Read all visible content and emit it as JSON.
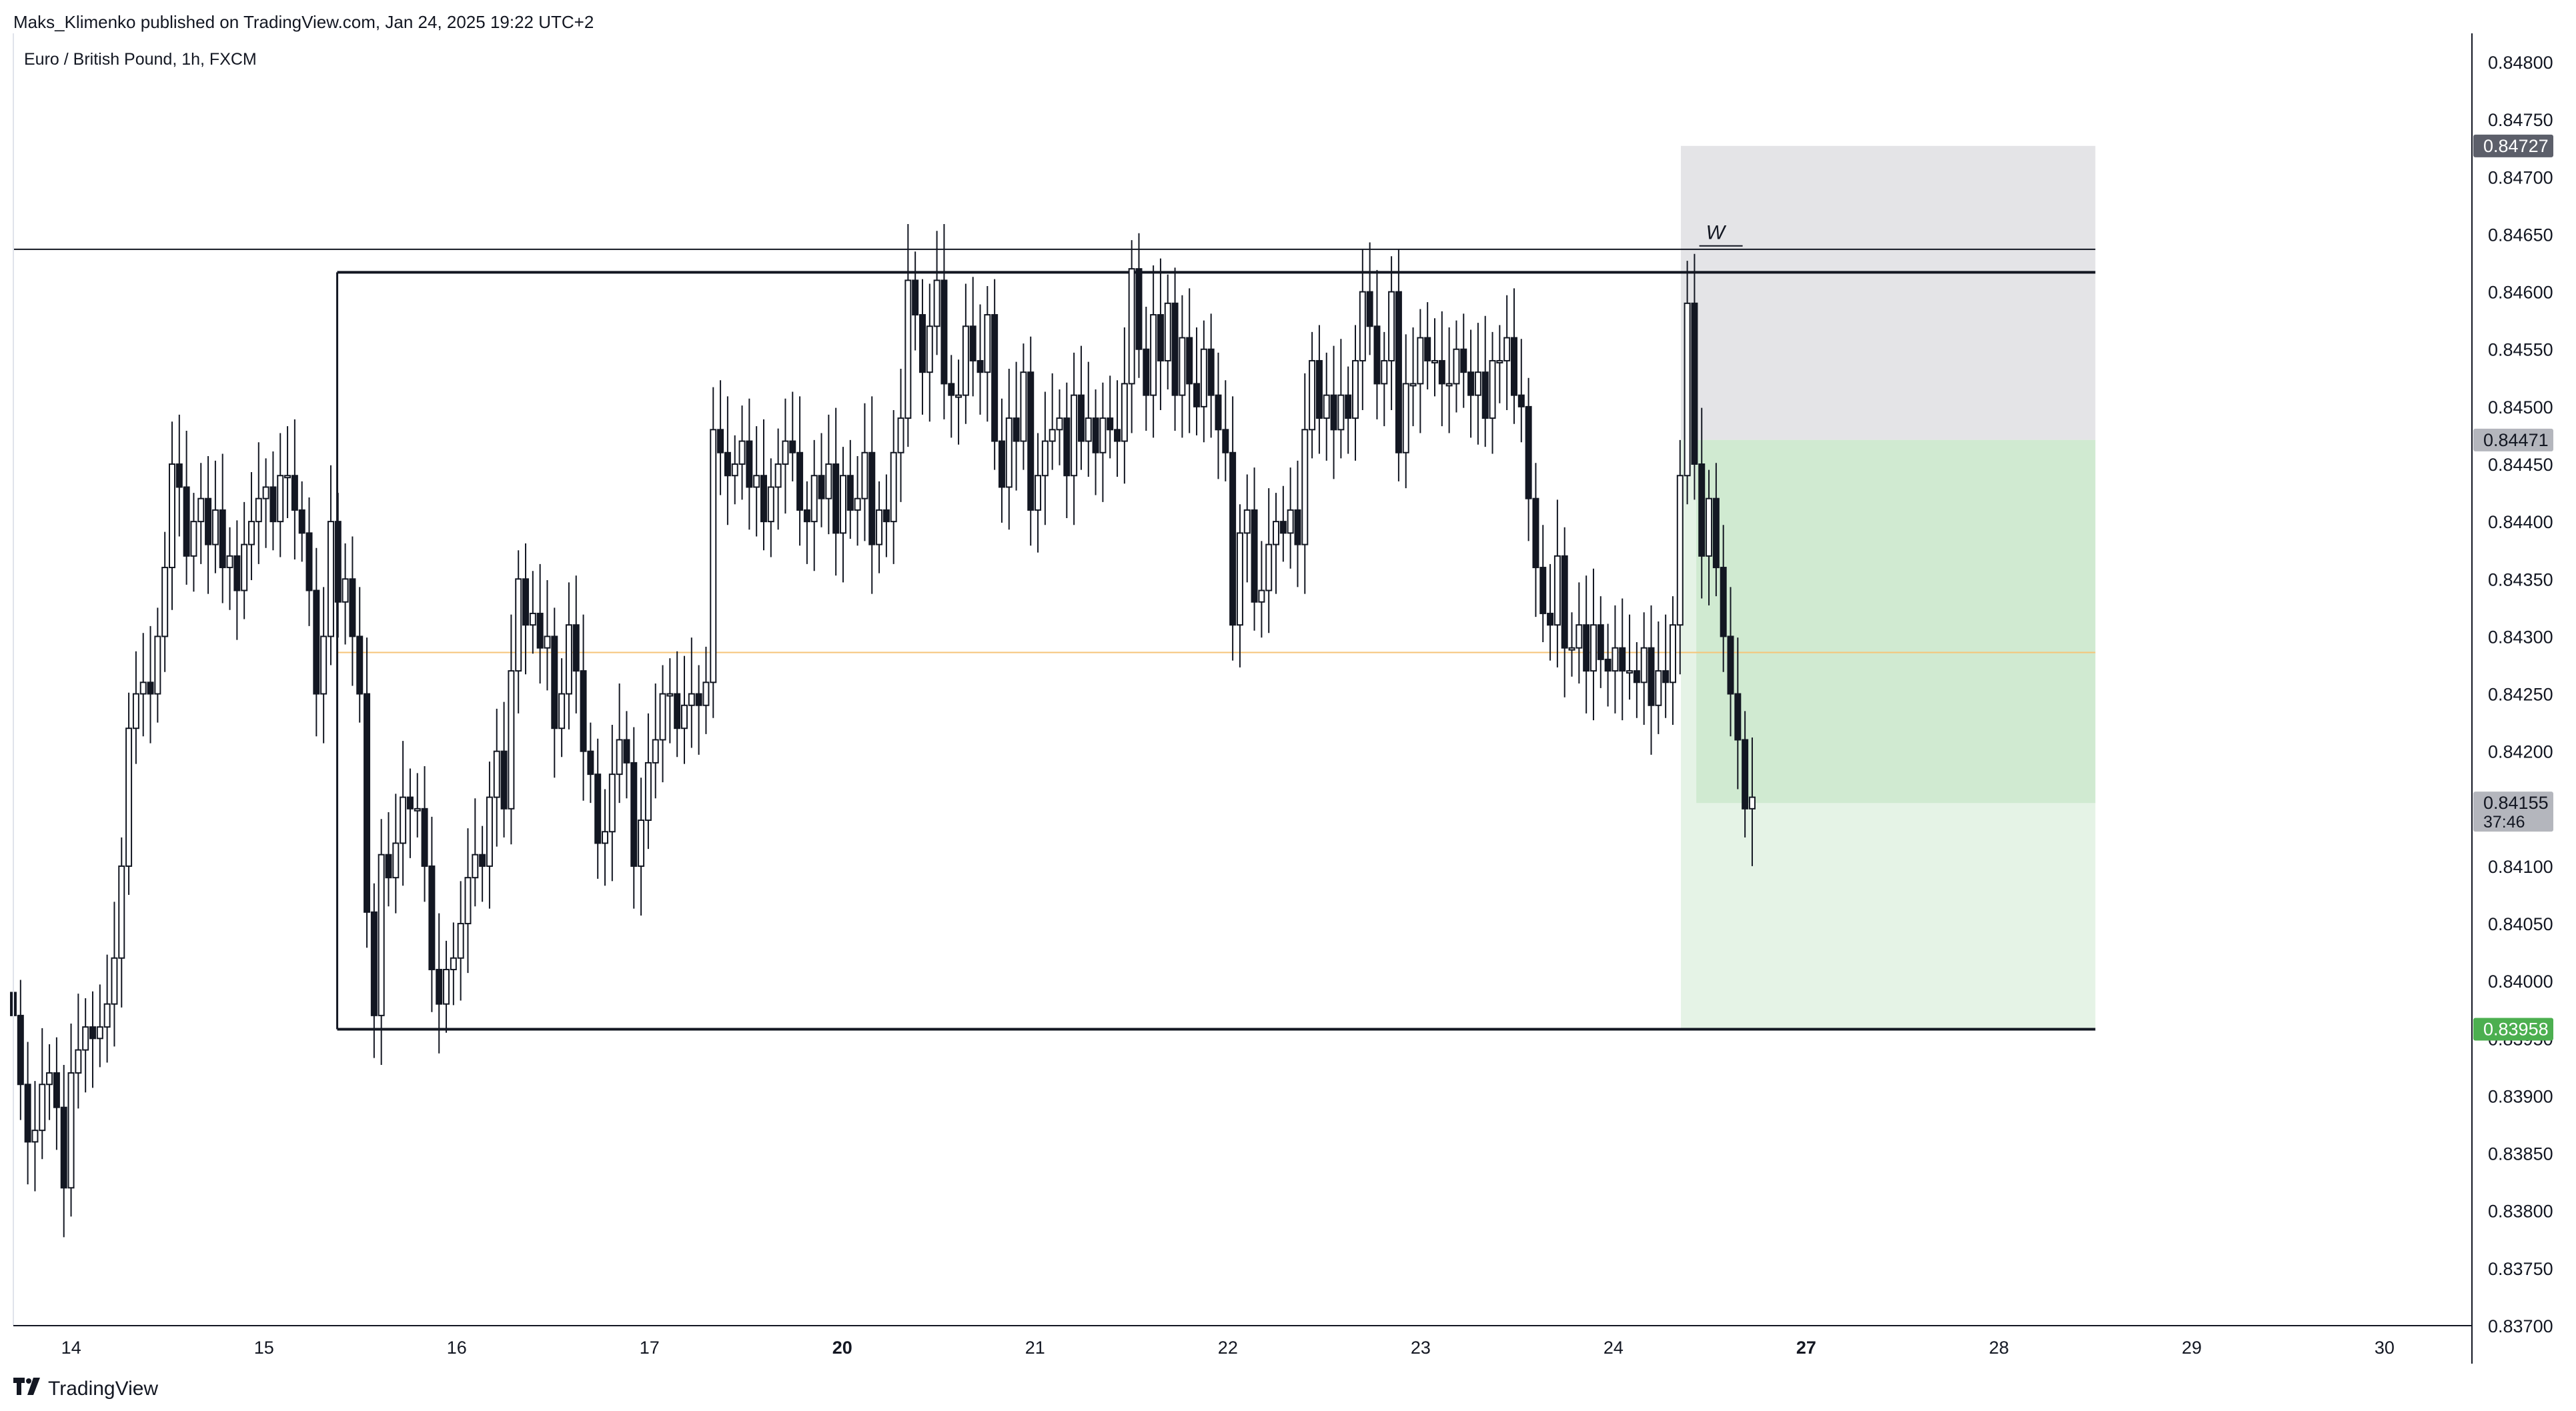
{
  "header": {
    "published": "Maks_Klimenko published on TradingView.com, Jan 24, 2025 19:22 UTC+2",
    "symbol": "Euro / British Pound, 1h, FXCM"
  },
  "footer": {
    "brand": "TradingView",
    "logo_icon": "tradingview-logo-icon"
  },
  "colors": {
    "candle_up_fill": "#ffffff",
    "candle_down_fill": "#131722",
    "candle_border": "#131722",
    "stop_zone": "#e4e4e7",
    "target_zone_dark": "#d0ead1",
    "target_zone_light": "#e5f3e6",
    "mid_line": "#f6c478",
    "price_badge_dark": "#5c5f6a",
    "price_badge_gray": "#b4b6bd",
    "price_badge_green": "#4caf50"
  },
  "chart_data": {
    "type": "candlestick",
    "symbol": "EUR/GBP",
    "timeframe": "1h",
    "ylim": [
      0.837,
      0.84825
    ],
    "y_ticks": [
      "0.84800",
      "0.84750",
      "0.84700",
      "0.84650",
      "0.84600",
      "0.84550",
      "0.84500",
      "0.84450",
      "0.84400",
      "0.84350",
      "0.84300",
      "0.84250",
      "0.84200",
      "0.84150",
      "0.84100",
      "0.84050",
      "0.84000",
      "0.83950",
      "0.83900",
      "0.83850",
      "0.83800",
      "0.83750",
      "0.83700"
    ],
    "x_ticks": [
      {
        "label": "14",
        "bold": false
      },
      {
        "label": "15",
        "bold": false
      },
      {
        "label": "16",
        "bold": false
      },
      {
        "label": "17",
        "bold": false
      },
      {
        "label": "20",
        "bold": true
      },
      {
        "label": "21",
        "bold": false
      },
      {
        "label": "22",
        "bold": false
      },
      {
        "label": "23",
        "bold": false
      },
      {
        "label": "24",
        "bold": false
      },
      {
        "label": "27",
        "bold": true
      },
      {
        "label": "28",
        "bold": false
      },
      {
        "label": "29",
        "bold": false
      },
      {
        "label": "30",
        "bold": false
      }
    ],
    "x_day_range": [
      -0.3,
      12.45
    ],
    "closes": [
      0.8397,
      0.8391,
      0.8386,
      0.8387,
      0.8391,
      0.8392,
      0.8389,
      0.8382,
      0.8392,
      0.8394,
      0.8396,
      0.8395,
      0.8396,
      0.8398,
      0.8402,
      0.841,
      0.8422,
      0.8425,
      0.8426,
      0.8425,
      0.843,
      0.8436,
      0.8445,
      0.8443,
      0.8437,
      0.844,
      0.8442,
      0.8438,
      0.8441,
      0.8436,
      0.8437,
      0.8434,
      0.8438,
      0.844,
      0.8442,
      0.8443,
      0.844,
      0.8444,
      0.8444,
      0.8441,
      0.8439,
      0.8434,
      0.8425,
      0.843,
      0.844,
      0.8433,
      0.8435,
      0.843,
      0.8425,
      0.8406,
      0.8397,
      0.8411,
      0.8409,
      0.8412,
      0.8416,
      0.8415,
      0.8415,
      0.841,
      0.8401,
      0.8398,
      0.8401,
      0.8402,
      0.8405,
      0.8409,
      0.8411,
      0.841,
      0.8416,
      0.842,
      0.8415,
      0.8427,
      0.8435,
      0.8431,
      0.8432,
      0.8429,
      0.843,
      0.8422,
      0.8425,
      0.8431,
      0.8427,
      0.842,
      0.8418,
      0.8412,
      0.8413,
      0.8418,
      0.8421,
      0.8419,
      0.841,
      0.8414,
      0.8419,
      0.8421,
      0.8425,
      0.8425,
      0.8422,
      0.8424,
      0.8425,
      0.8424,
      0.8426,
      0.8448,
      0.8446,
      0.8444,
      0.8445,
      0.8447,
      0.8443,
      0.8444,
      0.844,
      0.8443,
      0.8445,
      0.8447,
      0.8446,
      0.8441,
      0.844,
      0.8444,
      0.8442,
      0.8445,
      0.8439,
      0.8444,
      0.8441,
      0.8442,
      0.8446,
      0.8438,
      0.8441,
      0.844,
      0.8446,
      0.8449,
      0.8461,
      0.8458,
      0.8453,
      0.8457,
      0.8461,
      0.8452,
      0.8451,
      0.8451,
      0.8457,
      0.8454,
      0.8453,
      0.8458,
      0.8447,
      0.8443,
      0.8449,
      0.8447,
      0.8453,
      0.8441,
      0.8444,
      0.8447,
      0.8448,
      0.8449,
      0.8444,
      0.8451,
      0.8447,
      0.8449,
      0.8446,
      0.8449,
      0.8448,
      0.8447,
      0.8452,
      0.8462,
      0.8455,
      0.8451,
      0.8458,
      0.8454,
      0.8459,
      0.8451,
      0.8456,
      0.8452,
      0.845,
      0.8455,
      0.8451,
      0.8448,
      0.8446,
      0.8431,
      0.8439,
      0.8441,
      0.8433,
      0.8434,
      0.8438,
      0.844,
      0.8439,
      0.8441,
      0.8438,
      0.8448,
      0.8454,
      0.8449,
      0.8451,
      0.8448,
      0.8451,
      0.8449,
      0.8454,
      0.846,
      0.8457,
      0.8452,
      0.8454,
      0.846,
      0.8446,
      0.8452,
      0.8452,
      0.8456,
      0.8454,
      0.8454,
      0.8452,
      0.8452,
      0.8455,
      0.8453,
      0.8451,
      0.8453,
      0.8449,
      0.8454,
      0.8454,
      0.8456,
      0.8451,
      0.845,
      0.8442,
      0.8436,
      0.8432,
      0.8431,
      0.8437,
      0.8429,
      0.8429,
      0.8431,
      0.8427,
      0.8431,
      0.8428,
      0.8427,
      0.8429,
      0.8427,
      0.8427,
      0.8426,
      0.8429,
      0.8424,
      0.8427,
      0.8426,
      0.8431,
      0.8444,
      0.8459,
      0.8445,
      0.8437,
      0.8442,
      0.8436,
      0.843,
      0.8425,
      0.8421,
      0.8415,
      0.8416
    ],
    "last_candle_wick": [
      0.84212,
      0.841
    ],
    "horizontal_lines": [
      {
        "name": "upper-thin-line",
        "value": 0.84637,
        "x_from_day": -0.3,
        "x_to_day": 10.5
      },
      {
        "name": "range-top-line",
        "value": 0.84617,
        "x_from_day": 1.38,
        "x_to_day": 10.5
      },
      {
        "name": "range-bottom-line",
        "value": 0.83958,
        "x_from_day": 1.38,
        "x_to_day": 10.5
      },
      {
        "name": "mid-line",
        "value": 0.84286,
        "x_from_day": 1.38,
        "x_to_day": 10.5
      }
    ],
    "range_left_edge_day": 1.38,
    "position": {
      "x_from_day": 8.35,
      "x_to_day": 10.5,
      "stop": 0.84727,
      "entry": 0.84471,
      "current": 0.84155,
      "target": 0.83958,
      "filled_from_day": 8.43
    },
    "annotation": {
      "text": "W",
      "value": 0.8464,
      "day": 8.48
    },
    "price_badges": [
      {
        "value": 0.84727,
        "label": "0.84727",
        "style": "dark"
      },
      {
        "value": 0.84471,
        "label": "0.84471",
        "style": "gray"
      },
      {
        "value": 0.84155,
        "label": "0.84155",
        "sublabel": "37:46",
        "style": "gray"
      },
      {
        "value": 0.83958,
        "label": "0.83958",
        "style": "green"
      }
    ]
  }
}
